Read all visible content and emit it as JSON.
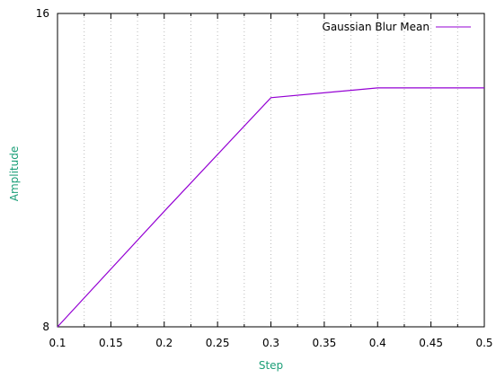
{
  "chart_data": {
    "type": "line",
    "title": "",
    "xlabel": "Step",
    "ylabel": "Amplitude",
    "xlim": [
      0.1,
      0.5
    ],
    "ylim": [
      8,
      16
    ],
    "x_ticks": [
      "0.1",
      "0.15",
      "0.2",
      "0.25",
      "0.3",
      "0.35",
      "0.4",
      "0.45",
      "0.5"
    ],
    "y_ticks": [
      "8",
      "16"
    ],
    "x_minor_per_major": 2,
    "grid": "x-dotted",
    "legend_position": "top-right",
    "axis_label_color": "#1a9e77",
    "series": [
      {
        "name": "Gaussian Blur Mean",
        "color": "#9400d3",
        "x": [
          0.1,
          0.2,
          0.3,
          0.4,
          0.5
        ],
        "y": [
          8.0,
          10.95,
          13.85,
          14.1,
          14.1
        ]
      }
    ]
  }
}
